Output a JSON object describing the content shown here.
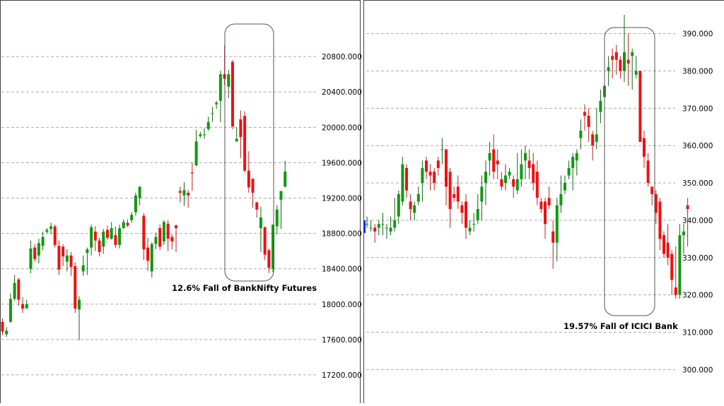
{
  "colors": {
    "up": "#119911",
    "down": "#ee1111",
    "wick_down": "#bb2222",
    "wick_up": "#116611",
    "grid": "#aaaaaa",
    "border": "#444444"
  },
  "chart_data": [
    {
      "type": "candlestick",
      "title": "",
      "annotation": "12.6% Fall of BankNifty Futures",
      "yticks": [
        "20800.000",
        "20400.000",
        "20000.000",
        "19600.000",
        "19200.000",
        "18800.000",
        "18400.000",
        "18000.000",
        "17600.000",
        "17200.000"
      ],
      "ylim": [
        16880,
        21440
      ],
      "grid": true,
      "candles": [
        [
          17800,
          17690,
          17840,
          17650
        ],
        [
          17660,
          17700,
          17740,
          17630
        ],
        [
          17800,
          18060,
          18120,
          17790
        ],
        [
          18060,
          18240,
          18330,
          18040
        ],
        [
          18280,
          18050,
          18300,
          17980
        ],
        [
          18000,
          17950,
          18080,
          17900
        ],
        [
          17950,
          18000,
          18050,
          17950
        ],
        [
          18400,
          18630,
          18720,
          18350
        ],
        [
          18640,
          18510,
          18680,
          18480
        ],
        [
          18550,
          18690,
          18740,
          18460
        ],
        [
          18660,
          18760,
          18820,
          18610
        ],
        [
          18820,
          18840,
          18860,
          18800
        ],
        [
          18850,
          18880,
          18920,
          18790
        ],
        [
          18880,
          18670,
          18900,
          18640
        ],
        [
          18660,
          18390,
          18720,
          18330
        ],
        [
          18650,
          18540,
          18680,
          18430
        ],
        [
          18480,
          18550,
          18620,
          18370
        ],
        [
          18550,
          18420,
          18590,
          18320
        ],
        [
          18430,
          17950,
          18470,
          17900
        ],
        [
          17940,
          18050,
          18090,
          17590
        ],
        [
          18370,
          18440,
          18550,
          18320
        ],
        [
          18580,
          18620,
          18640,
          18330
        ],
        [
          18640,
          18870,
          18900,
          18550
        ],
        [
          18820,
          18720,
          18880,
          18600
        ],
        [
          18720,
          18590,
          18750,
          18540
        ],
        [
          18650,
          18820,
          18850,
          18570
        ],
        [
          18840,
          18750,
          18890,
          18730
        ],
        [
          18740,
          18860,
          18930,
          18730
        ],
        [
          18780,
          18670,
          18880,
          18640
        ],
        [
          18670,
          18860,
          18900,
          18630
        ],
        [
          18860,
          18930,
          18960,
          18850
        ],
        [
          18920,
          18890,
          18960,
          18870
        ],
        [
          18950,
          19010,
          19040,
          18920
        ],
        [
          19040,
          19230,
          19260,
          19000
        ],
        [
          19200,
          19330,
          19330,
          19120
        ],
        [
          19000,
          18620,
          19030,
          18500
        ],
        [
          18640,
          18490,
          18750,
          18380
        ],
        [
          18370,
          18680,
          18700,
          18300
        ],
        [
          18680,
          18760,
          18810,
          18620
        ],
        [
          18860,
          18650,
          18900,
          18610
        ],
        [
          18710,
          18930,
          18950,
          18670
        ],
        [
          18910,
          18740,
          18950,
          18600
        ],
        [
          18760,
          18710,
          18790,
          18620
        ],
        [
          18890,
          18860,
          18900,
          18590
        ],
        [
          19280,
          19260,
          19330,
          19150
        ],
        [
          19230,
          19290,
          19380,
          19110
        ],
        [
          19260,
          19230,
          19290,
          19090
        ],
        [
          19490,
          19480,
          19600,
          19280
        ],
        [
          19570,
          19840,
          19970,
          19560
        ],
        [
          19900,
          19920,
          19950,
          19880
        ],
        [
          19920,
          19920,
          19990,
          19870
        ],
        [
          19980,
          20060,
          20120,
          19960
        ],
        [
          20160,
          20160,
          20230,
          20060
        ],
        [
          20260,
          20280,
          20300,
          20210
        ],
        [
          20300,
          20600,
          20640,
          20060
        ],
        [
          20600,
          20550,
          20930,
          20480
        ],
        [
          20460,
          20600,
          20650,
          20330
        ],
        [
          20740,
          20010,
          20760,
          19980
        ],
        [
          19840,
          19870,
          20000,
          19850
        ],
        [
          20090,
          19890,
          20190,
          19650
        ],
        [
          20130,
          19510,
          20180,
          19490
        ],
        [
          19510,
          19320,
          19730,
          19260
        ],
        [
          19420,
          19260,
          19420,
          19090
        ],
        [
          19150,
          19070,
          19160,
          18980
        ],
        [
          18860,
          18980,
          19100,
          18590
        ],
        [
          18870,
          18560,
          18880,
          18500
        ],
        [
          18610,
          18410,
          18630,
          18350
        ],
        [
          18400,
          18900,
          18900,
          18360
        ],
        [
          18880,
          19070,
          19120,
          18790
        ],
        [
          19180,
          19280,
          19280,
          18850
        ],
        [
          19330,
          19500,
          19620,
          19320
        ]
      ]
    },
    {
      "type": "candlestick",
      "title": "",
      "annotation": "19.57% Fall of ICICI Bank",
      "yticks": [
        "390.000",
        "380.000",
        "370.000",
        "360.000",
        "350.000",
        "340.000",
        "330.000",
        "320.000",
        "310.000",
        "300.000"
      ],
      "ylim": [
        291,
        399
      ],
      "grid": true,
      "candles": [
        [
          339,
          339,
          341,
          338
        ],
        [
          338,
          338,
          340,
          337
        ],
        [
          338,
          337,
          339,
          334
        ],
        [
          338,
          339,
          340,
          336
        ],
        [
          339,
          339,
          342,
          336
        ],
        [
          338,
          338,
          339,
          335
        ],
        [
          337,
          338,
          341,
          336
        ],
        [
          338,
          340,
          346,
          337
        ],
        [
          341,
          347,
          348,
          339
        ],
        [
          345,
          355,
          357,
          344
        ],
        [
          354,
          348,
          355,
          346
        ],
        [
          345,
          343,
          347,
          340
        ],
        [
          342,
          344,
          345,
          340
        ],
        [
          345,
          347,
          349,
          344
        ],
        [
          350,
          354,
          356,
          345
        ],
        [
          356,
          353,
          357,
          351
        ],
        [
          353,
          352,
          355,
          348
        ],
        [
          353,
          350,
          354,
          348
        ],
        [
          356,
          354,
          357,
          352
        ],
        [
          359,
          359,
          362,
          355
        ],
        [
          359,
          349,
          359,
          344
        ],
        [
          353,
          343,
          354,
          338
        ],
        [
          347,
          346,
          349,
          345
        ],
        [
          349,
          345,
          352,
          343
        ],
        [
          344,
          342,
          345,
          339
        ],
        [
          345,
          338,
          347,
          335
        ],
        [
          337,
          338,
          340,
          336
        ],
        [
          339,
          339,
          342,
          337
        ],
        [
          340,
          343,
          347,
          339
        ],
        [
          345,
          349,
          352,
          340
        ],
        [
          350,
          353,
          356,
          344
        ],
        [
          356,
          358,
          361,
          352
        ],
        [
          359,
          353,
          363,
          351
        ],
        [
          356,
          355,
          359,
          351
        ],
        [
          351,
          349,
          353,
          348
        ],
        [
          350,
          352,
          355,
          348
        ],
        [
          352,
          353,
          354,
          351
        ],
        [
          351,
          349,
          352,
          346
        ],
        [
          348,
          351,
          358,
          347
        ],
        [
          351,
          355,
          359,
          349
        ],
        [
          356,
          358,
          360,
          351
        ],
        [
          356,
          354,
          359,
          351
        ],
        [
          355,
          350,
          358,
          348
        ],
        [
          353,
          346,
          356,
          344
        ],
        [
          345,
          343,
          346,
          342
        ],
        [
          345,
          339,
          346,
          335
        ],
        [
          346,
          344,
          349,
          343
        ],
        [
          337,
          334,
          340,
          327
        ],
        [
          334,
          344,
          346,
          329
        ],
        [
          344,
          347,
          352,
          342
        ],
        [
          348,
          350,
          352,
          347
        ],
        [
          352,
          354,
          356,
          351
        ],
        [
          354,
          357,
          358,
          348
        ],
        [
          356,
          358,
          359,
          352
        ],
        [
          362,
          364,
          367,
          359
        ],
        [
          369,
          368,
          371,
          364
        ],
        [
          368,
          365,
          370,
          361
        ],
        [
          363,
          360,
          364,
          356
        ],
        [
          361,
          363,
          370,
          359
        ],
        [
          369,
          372,
          375,
          366
        ],
        [
          373,
          376,
          381,
          371
        ],
        [
          380,
          381,
          384,
          376
        ],
        [
          384,
          383,
          386,
          378
        ],
        [
          385,
          383,
          387,
          379
        ],
        [
          383,
          380,
          384,
          378
        ],
        [
          380,
          385,
          395,
          377
        ],
        [
          383,
          382,
          390,
          376
        ],
        [
          384,
          385,
          386,
          375
        ],
        [
          379,
          380,
          384,
          378
        ],
        [
          380,
          361,
          380,
          361
        ],
        [
          362,
          357,
          364,
          354
        ],
        [
          356,
          350,
          358,
          349
        ],
        [
          349,
          347,
          349,
          344
        ],
        [
          347,
          342,
          348,
          339
        ],
        [
          345,
          335,
          346,
          332
        ],
        [
          336,
          331,
          337,
          330
        ],
        [
          334,
          330,
          339,
          328
        ],
        [
          331,
          324,
          332,
          320
        ],
        [
          322,
          320,
          333,
          319
        ],
        [
          320,
          336,
          339,
          319
        ],
        [
          336,
          337,
          339,
          331
        ],
        [
          344,
          343,
          346,
          333
        ]
      ]
    }
  ]
}
